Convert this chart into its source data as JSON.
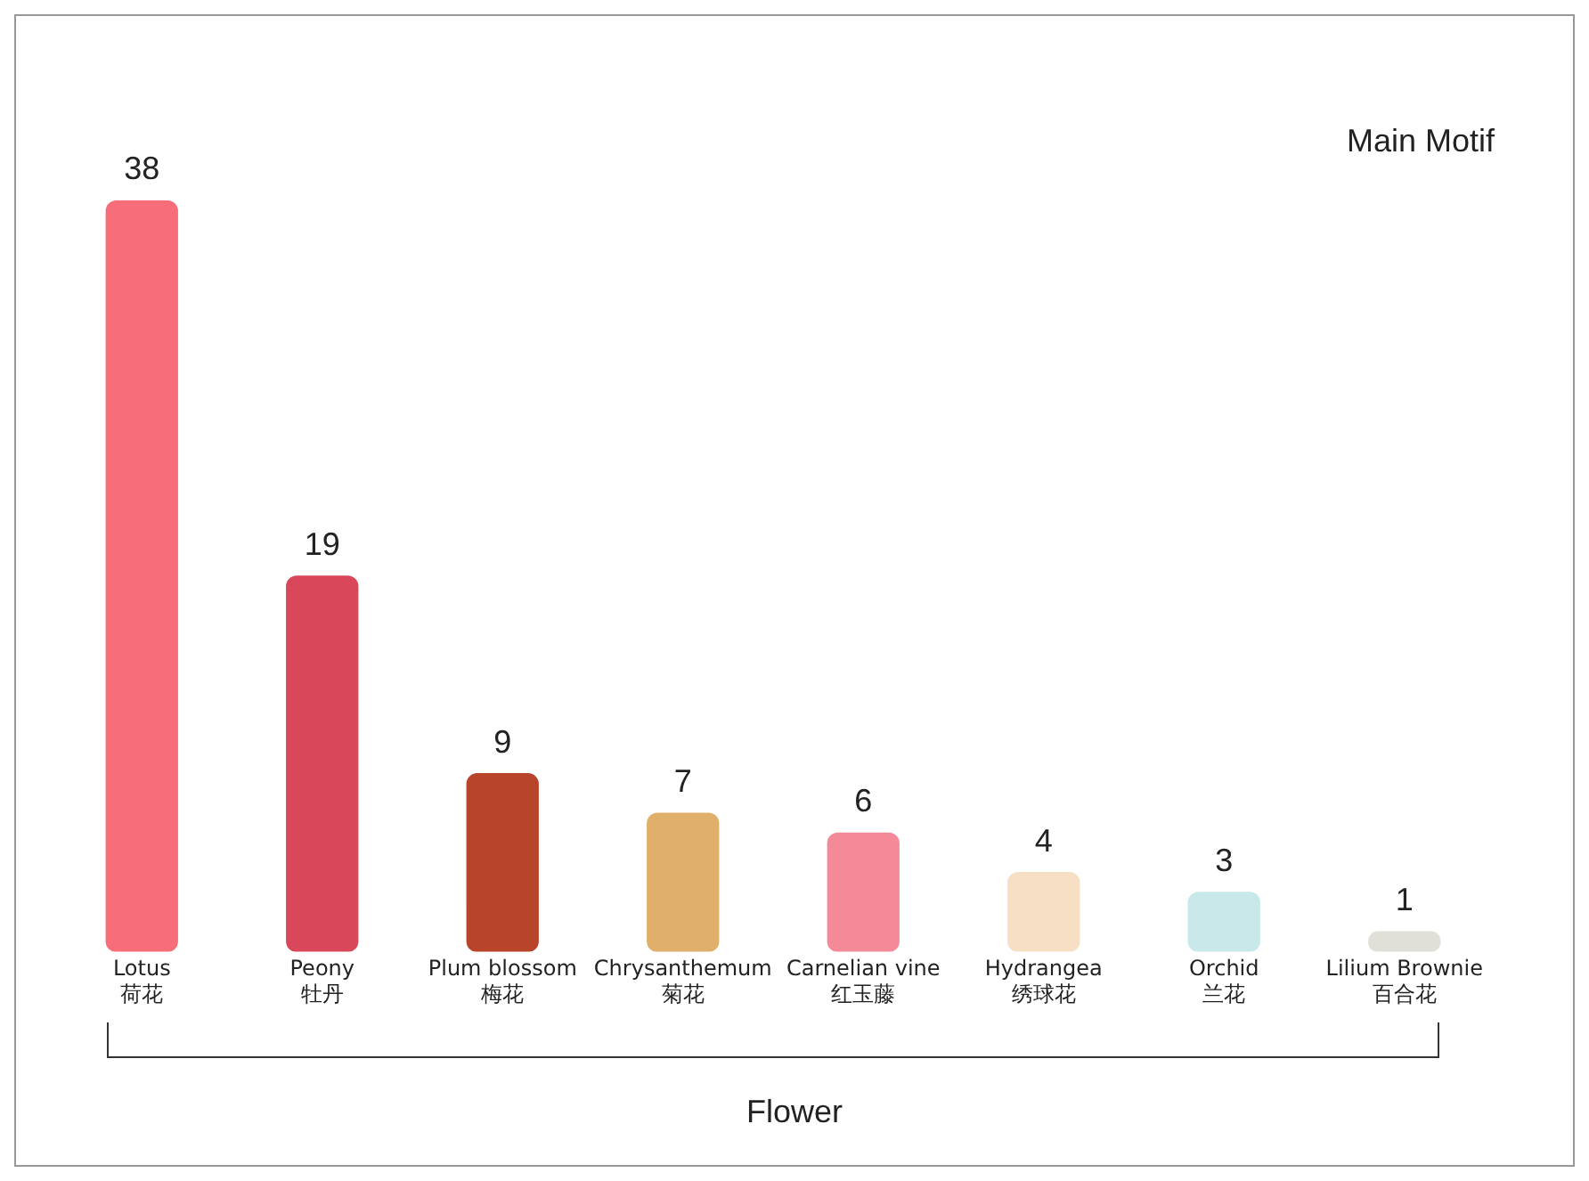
{
  "chart_data": {
    "type": "bar",
    "title": "Main Motif",
    "xlabel": "Flower",
    "categories": [
      "Lotus\n荷花",
      "Peony\n牡丹",
      "Plum blossom\n梅花",
      "Chrysanthemum\n菊花",
      "Carnelian vine\n红玉藤",
      "Hydrangea\n绣球花",
      "Orchid\n兰花",
      "Lilium Brownie\n百合花"
    ],
    "values": [
      38,
      19,
      9,
      7,
      6,
      4,
      3,
      1
    ],
    "colors": [
      "#f76d7a",
      "#d9475a",
      "#b8452a",
      "#e0b06a",
      "#f48a98",
      "#f7dfc4",
      "#c8e8ea",
      "#e0e0d8"
    ],
    "data_labels": true,
    "grid": false,
    "legend": false
  }
}
